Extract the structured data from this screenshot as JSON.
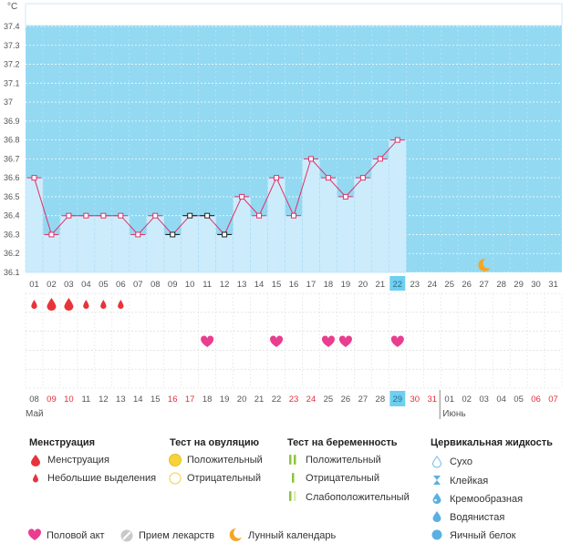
{
  "chart_data": {
    "type": "line",
    "unit_label": "°C",
    "y_ticks": [
      "37.4",
      "37.3",
      "37.2",
      "37.1",
      "37",
      "36.9",
      "36.8",
      "36.7",
      "36.6",
      "36.5",
      "36.4",
      "36.3",
      "36.2",
      "36.1"
    ],
    "ylim": [
      36.1,
      37.45
    ],
    "cycle_days": [
      "01",
      "02",
      "03",
      "04",
      "05",
      "06",
      "07",
      "08",
      "09",
      "10",
      "11",
      "12",
      "13",
      "14",
      "15",
      "16",
      "17",
      "18",
      "19",
      "20",
      "21",
      "22",
      "23",
      "24",
      "25",
      "26",
      "27",
      "28",
      "29",
      "30",
      "31"
    ],
    "temperatures": [
      36.6,
      36.3,
      36.4,
      36.4,
      36.4,
      36.4,
      36.3,
      36.4,
      36.3,
      36.4,
      36.4,
      36.3,
      36.5,
      36.4,
      36.6,
      36.4,
      36.7,
      36.6,
      36.5,
      36.6,
      36.7,
      36.8
    ],
    "excluded_points": [
      8,
      9,
      10,
      11
    ],
    "current_day_index": 21,
    "bg_colors": {
      "blue": "#93d9f2",
      "bar": "#ccecfb",
      "bar_stroke": "#a9dcf5",
      "line": "#e0306a",
      "highlight": "#6ecff0"
    },
    "moon_day_index": 26,
    "menstruation": [
      {
        "day": 0,
        "size": "small"
      },
      {
        "day": 1,
        "size": "big"
      },
      {
        "day": 2,
        "size": "big"
      },
      {
        "day": 3,
        "size": "small"
      },
      {
        "day": 4,
        "size": "small"
      },
      {
        "day": 5,
        "size": "small"
      }
    ],
    "intercourse_days": [
      10,
      14,
      17,
      18,
      21
    ],
    "calendar_dates": [
      "08",
      "09",
      "10",
      "11",
      "12",
      "13",
      "14",
      "15",
      "16",
      "17",
      "18",
      "19",
      "20",
      "21",
      "22",
      "23",
      "24",
      "25",
      "26",
      "27",
      "28",
      "29",
      "30",
      "31",
      "01",
      "02",
      "03",
      "04",
      "05",
      "06",
      "07"
    ],
    "red_date_indices": [
      1,
      2,
      8,
      9,
      15,
      16,
      22,
      23,
      29,
      30
    ],
    "month_labels": [
      {
        "label": "Май",
        "start": 0
      },
      {
        "label": "Июнь",
        "start": 24
      }
    ]
  },
  "legend": {
    "menstruation": {
      "title": "Менструация",
      "items": [
        "Менструация",
        "Небольшие выделения"
      ]
    },
    "ovulation": {
      "title": "Тест на овуляцию",
      "items": [
        "Положительный",
        "Отрицательный"
      ]
    },
    "pregnancy": {
      "title": "Тест на беременность",
      "items": [
        "Положительный",
        "Отрицательный",
        "Слабоположительный"
      ]
    },
    "cervical": {
      "title": "Цервикальная жидкость",
      "items": [
        "Сухо",
        "Клейкая",
        "Кремообразная",
        "Водянистая",
        "Яичный белок"
      ]
    },
    "bottom": [
      "Половой акт",
      "Прием лекарств",
      "Лунный календарь"
    ]
  }
}
